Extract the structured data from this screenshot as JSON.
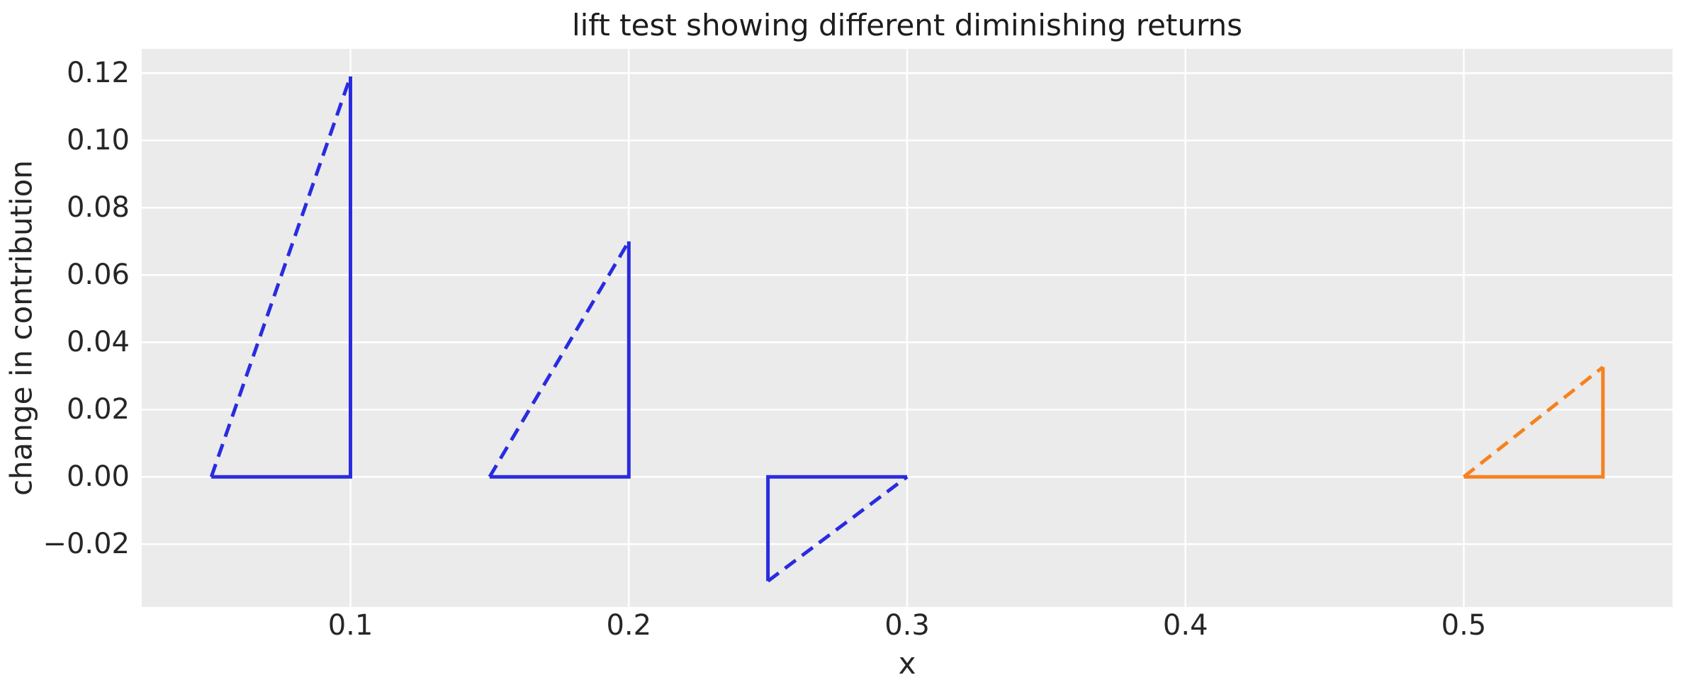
{
  "figure": {
    "title": "lift test showing different diminishing returns",
    "background_color": "#ffffff",
    "plot_background_color": "#ebebeb",
    "gridline_color": "#ffffff",
    "text_color": "#262626"
  },
  "chart_data": {
    "type": "line",
    "title": "lift test showing different diminishing returns",
    "xlabel": "x",
    "ylabel": "change in contribution",
    "xlim": [
      0.025,
      0.575
    ],
    "ylim": [
      -0.0387,
      0.1272
    ],
    "grid": true,
    "legend": "none",
    "x_ticks": [
      {
        "value": 0.1,
        "label": "0.1"
      },
      {
        "value": 0.2,
        "label": "0.2"
      },
      {
        "value": 0.3,
        "label": "0.3"
      },
      {
        "value": 0.4,
        "label": "0.4"
      },
      {
        "value": 0.5,
        "label": "0.5"
      }
    ],
    "y_ticks": [
      {
        "value": 0.12,
        "label": "0.12"
      },
      {
        "value": 0.1,
        "label": "0.10"
      },
      {
        "value": 0.08,
        "label": "0.08"
      },
      {
        "value": 0.06,
        "label": "0.06"
      },
      {
        "value": 0.04,
        "label": "0.04"
      },
      {
        "value": 0.02,
        "label": "0.02"
      },
      {
        "value": 0.0,
        "label": "0.00"
      },
      {
        "value": -0.02,
        "label": "−0.02"
      }
    ],
    "series": [
      {
        "name": "lift-triangle-1",
        "color": "#2a2be0",
        "x_start": 0.05,
        "x_end": 0.1,
        "change_in_contribution": 0.119,
        "solid": [
          [
            0.05,
            0.0
          ],
          [
            0.1,
            0.0
          ],
          [
            0.1,
            0.119
          ]
        ],
        "dashed": [
          [
            0.05,
            0.0
          ],
          [
            0.1,
            0.119
          ]
        ]
      },
      {
        "name": "lift-triangle-2",
        "color": "#2a2be0",
        "x_start": 0.15,
        "x_end": 0.2,
        "change_in_contribution": 0.07,
        "solid": [
          [
            0.15,
            0.0
          ],
          [
            0.2,
            0.0
          ],
          [
            0.2,
            0.07
          ]
        ],
        "dashed": [
          [
            0.15,
            0.0
          ],
          [
            0.2,
            0.07
          ]
        ]
      },
      {
        "name": "lift-triangle-3",
        "color": "#2a2be0",
        "x_start": 0.25,
        "x_end": 0.3,
        "change_in_contribution": -0.031,
        "solid": [
          [
            0.3,
            0.0
          ],
          [
            0.25,
            0.0
          ],
          [
            0.25,
            -0.031
          ]
        ],
        "dashed": [
          [
            0.25,
            -0.031
          ],
          [
            0.3,
            0.0
          ]
        ]
      },
      {
        "name": "lift-triangle-4",
        "color": "#f5821f",
        "x_start": 0.5,
        "x_end": 0.55,
        "change_in_contribution": 0.0326,
        "solid": [
          [
            0.5,
            0.0
          ],
          [
            0.55,
            0.0
          ],
          [
            0.55,
            0.0326
          ]
        ],
        "dashed": [
          [
            0.5,
            0.0
          ],
          [
            0.55,
            0.0326
          ]
        ]
      }
    ]
  }
}
